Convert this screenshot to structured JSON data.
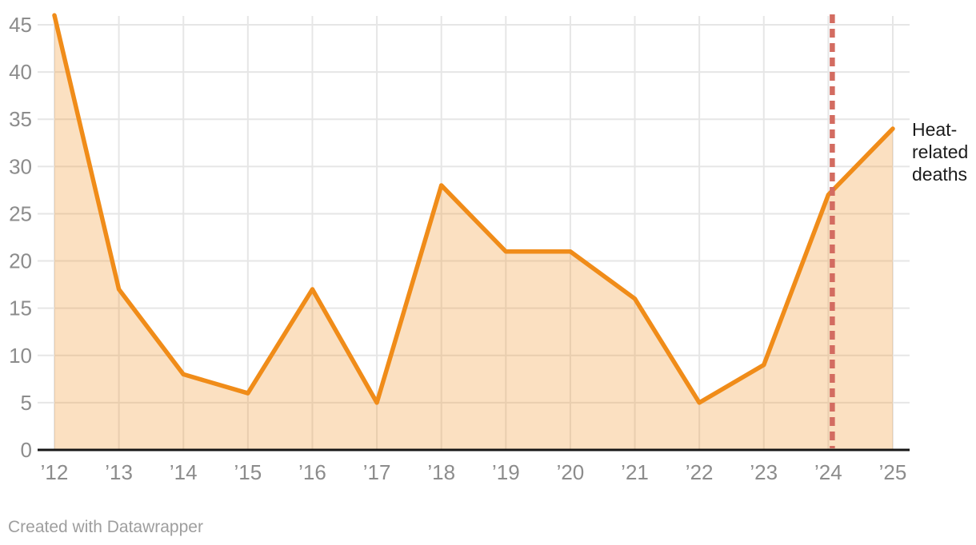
{
  "chart_data": {
    "type": "area",
    "title": "",
    "xlabel": "",
    "ylabel": "",
    "categories": [
      "’12",
      "’13",
      "’14",
      "’15",
      "’16",
      "’17",
      "’18",
      "’19",
      "’20",
      "’21",
      "’22",
      "’23",
      "’24",
      "’25"
    ],
    "years": [
      2012,
      2013,
      2014,
      2015,
      2016,
      2017,
      2018,
      2019,
      2020,
      2021,
      2022,
      2023,
      2024,
      2025
    ],
    "series": [
      {
        "name": "Heat-related deaths",
        "values": [
          46,
          17,
          8,
          6,
          17,
          5,
          28,
          21,
          21,
          16,
          5,
          9,
          27,
          34
        ]
      }
    ],
    "series_label": "Heat-related deaths",
    "y_ticks": [
      0,
      5,
      10,
      15,
      20,
      25,
      30,
      35,
      40,
      45
    ],
    "ylim": [
      0,
      46
    ],
    "grid": true,
    "legend_position": "right-of-last-point",
    "annotation": {
      "type": "vertical-dashed-line",
      "at_year": 2024
    },
    "colors": {
      "line": "#f08c19",
      "fill": "rgba(240,140,25,0.27)",
      "annotation_line": "#d36c61",
      "gridline": "#e6e6e6",
      "axis": "#161616",
      "tick_text": "#8c8c8c",
      "series_label_text": "#1c1c1c",
      "credit_text": "#9e9e9e"
    }
  },
  "footer": {
    "credit": "Created with Datawrapper"
  }
}
